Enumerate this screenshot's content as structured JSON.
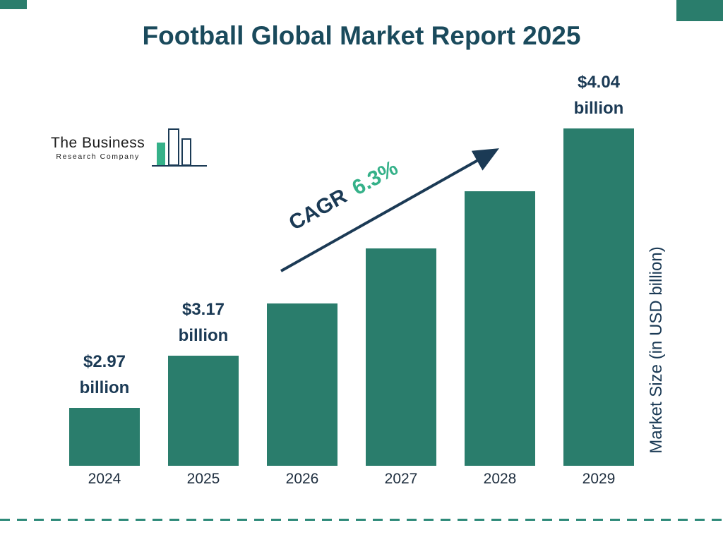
{
  "page": {
    "title": "Football Global Market Report 2025"
  },
  "logo": {
    "line1": "The Business",
    "line2": "Research Company"
  },
  "cagr": {
    "label": "CAGR",
    "value": "6.3%"
  },
  "axis": {
    "y_label": "Market Size (in USD billion)"
  },
  "chart_data": {
    "type": "bar",
    "title": "Football Global Market Report 2025",
    "categories": [
      "2024",
      "2025",
      "2026",
      "2027",
      "2028",
      "2029"
    ],
    "values": [
      2.97,
      3.17,
      3.37,
      3.58,
      3.8,
      4.04
    ],
    "bar_labels": [
      "$2.97 billion",
      "$3.17 billion",
      null,
      null,
      null,
      "$4.04 billion"
    ],
    "xlabel": "",
    "ylabel": "Market Size (in USD billion)",
    "cagr": "6.3%",
    "legend": false,
    "grid": false,
    "bar_color": "#2a7d6c",
    "accent_green": "#35b189",
    "dark_navy": "#1b3a55"
  }
}
